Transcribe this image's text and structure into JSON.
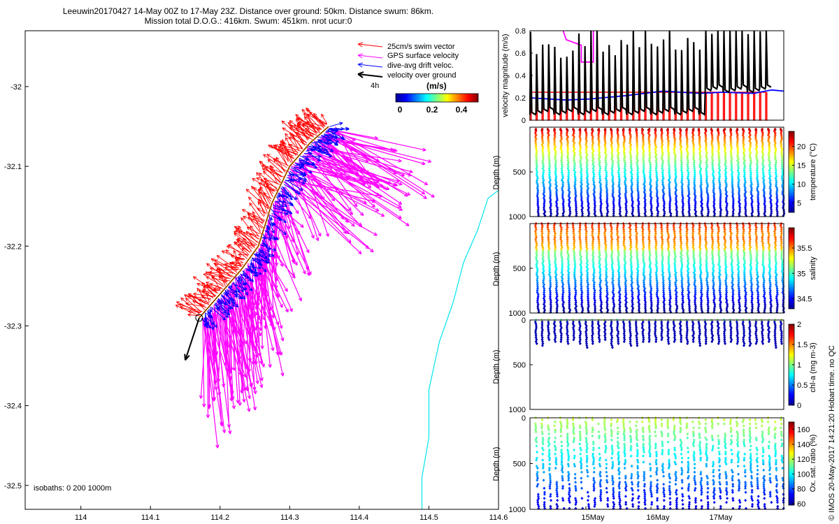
{
  "header": {
    "line1": "Leeuwin20170427 14-May 00Z to 17-May 23Z. Distance over ground: 50km. Distance swum: 86km.",
    "line2": "Mission total D.O.G.: 416km. Swum: 451km. nrot ucur:0"
  },
  "footer": {
    "credit": "© IMOS 20-May-2017 14:21:20 Hobart time. no QC"
  },
  "colors": {
    "swim": "#ff0000",
    "gps": "#ff00ff",
    "drift": "#0000ff",
    "ground": "#000000",
    "coast": "#00e5ee",
    "track": "#ff8c00"
  },
  "chart_data": [
    {
      "type": "scatter",
      "id": "map",
      "xlim": [
        113.92,
        114.6
      ],
      "ylim": [
        -32.53,
        -31.93
      ],
      "xticks": [
        "114",
        "114.1",
        "114.2",
        "114.3",
        "114.4",
        "114.5",
        "114.6"
      ],
      "yticks": [
        "-32",
        "-32.1",
        "-32.2",
        "-32.3",
        "-32.4",
        "-32.5"
      ],
      "legend": {
        "placement": "top-right",
        "items": [
          "25cm/s swim vector",
          "GPS surface velocity",
          "dive-avg drift veloc.",
          "velocity over ground"
        ],
        "time_label": "4h",
        "colorbar_title": "(m/s)",
        "colorbar_ticks": [
          "0",
          "0.2",
          "0.4"
        ]
      },
      "isobaths_label": "isobaths: 0   200   1000m",
      "glider_track": [
        [
          114.356,
          -32.05
        ],
        [
          114.33,
          -32.07
        ],
        [
          114.3,
          -32.1
        ],
        [
          114.275,
          -32.145
        ],
        [
          114.255,
          -32.2
        ],
        [
          114.23,
          -32.23
        ],
        [
          114.2,
          -32.26
        ],
        [
          114.17,
          -32.29
        ]
      ],
      "ground_velocity": {
        "start": [
          114.17,
          -32.29
        ],
        "end": [
          114.15,
          -32.343
        ]
      },
      "coastline": [
        [
          114.49,
          -32.53
        ],
        [
          114.49,
          -32.49
        ],
        [
          114.5,
          -32.44
        ],
        [
          114.5,
          -32.38
        ],
        [
          114.515,
          -32.32
        ],
        [
          114.535,
          -32.27
        ],
        [
          114.55,
          -32.22
        ],
        [
          114.57,
          -32.18
        ],
        [
          114.585,
          -32.14
        ],
        [
          114.6,
          -32.13
        ]
      ]
    },
    {
      "type": "line",
      "id": "velocity",
      "xlim": [
        14,
        18.2
      ],
      "ylim": [
        0,
        0.8
      ],
      "yticks": [
        "0",
        "0.2",
        "0.4",
        "0.6",
        "0.8"
      ],
      "ylabel": "velocity magnitude (m/s)",
      "series": [
        {
          "values_color": "#ff0000",
          "x": [
            14,
            18.2
          ],
          "y": [
            0.25,
            0.25
          ]
        },
        {
          "values_color": "#0000ff",
          "x": [
            14,
            14.6,
            15.0,
            15.6,
            16.2,
            16.8,
            17.2,
            17.7,
            18.0,
            18.2
          ],
          "y": [
            0.2,
            0.18,
            0.19,
            0.22,
            0.26,
            0.24,
            0.25,
            0.24,
            0.27,
            0.26
          ]
        },
        {
          "values_color": "#ff00ff",
          "x": [
            14.55,
            14.6,
            14.85,
            14.85,
            15.05,
            15.05
          ],
          "y": [
            0.8,
            0.72,
            0.67,
            0.52,
            0.52,
            0.8
          ]
        }
      ]
    },
    {
      "type": "scatter",
      "id": "temperature",
      "ylim": [
        1000,
        0
      ],
      "yticks": [
        "500",
        "1000"
      ],
      "ylabel": "Depth (m)",
      "colorbar_label": "temperature (°C)",
      "colorbar_ticks": [
        "5",
        "10",
        "15",
        "20"
      ],
      "clim": [
        2.5,
        24
      ]
    },
    {
      "type": "scatter",
      "id": "salinity",
      "ylim": [
        1000,
        0
      ],
      "yticks": [
        "500",
        "1000"
      ],
      "ylabel": "Depth (m)",
      "colorbar_label": "salinity",
      "colorbar_ticks": [
        "34.5",
        "35",
        "35.5"
      ],
      "clim": [
        34.3,
        35.9
      ]
    },
    {
      "type": "scatter",
      "id": "chla",
      "ylim": [
        1000,
        0
      ],
      "yticks": [
        "0",
        "500",
        "1000"
      ],
      "ylabel": "Depth (m)",
      "colorbar_label": "chl-a (mg m-3)",
      "colorbar_ticks": [
        "0",
        "0.5",
        "1",
        "1.5",
        "2"
      ],
      "clim": [
        0,
        2
      ]
    },
    {
      "type": "scatter",
      "id": "oxygen",
      "ylim": [
        1000,
        0
      ],
      "yticks": [
        "0",
        "500",
        "1000"
      ],
      "ylabel": "Depth (m)",
      "colorbar_label": "Ox. sat. ratio (%)",
      "colorbar_ticks": [
        "60",
        "80",
        "100",
        "120",
        "140",
        "160"
      ],
      "clim": [
        58,
        170
      ],
      "xticks": [
        "15May",
        "16May",
        "17May"
      ]
    }
  ]
}
